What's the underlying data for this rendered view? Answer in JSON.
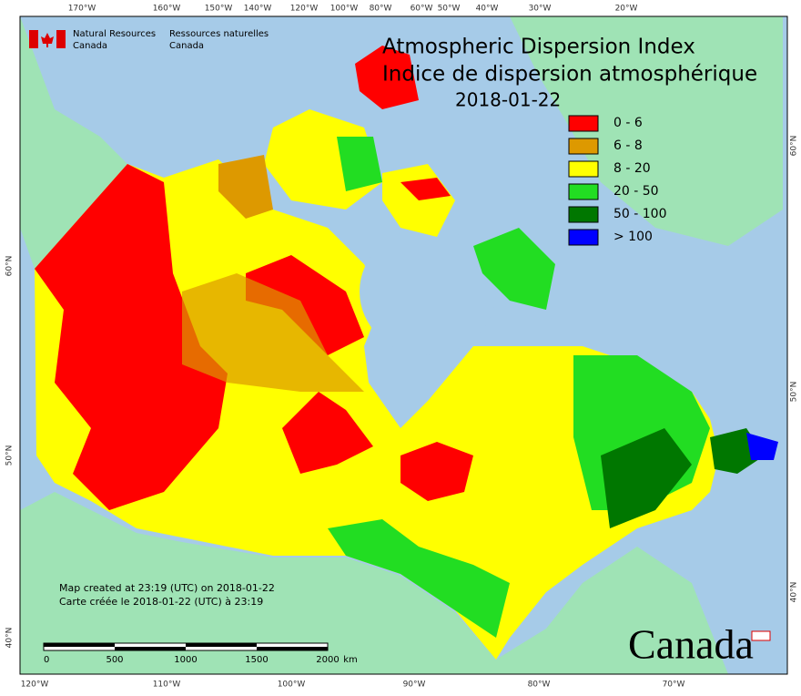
{
  "header": {
    "agency_en": [
      "Natural Resources",
      "Canada"
    ],
    "agency_fr": [
      "Ressources naturelles",
      "Canada"
    ],
    "title": "Atmospheric Dispersion Index",
    "title_fr": "Indice de dispersion atmosphérique",
    "date": "2018-01-22"
  },
  "legend": [
    {
      "label": "0 - 6",
      "color": "#ff0000"
    },
    {
      "label": "6 - 8",
      "color": "#dd9900"
    },
    {
      "label": "8 - 20",
      "color": "#ffff00"
    },
    {
      "label": "20 - 50",
      "color": "#22dd22"
    },
    {
      "label": "50 - 100",
      "color": "#007700"
    },
    {
      "label": "> 100",
      "color": "#0000ff"
    }
  ],
  "graticule": {
    "top": [
      "170°W",
      "160°W",
      "150°W",
      "140°W",
      "120°W",
      "100°W",
      "80°W",
      "60°W",
      "50°W",
      "40°W",
      "30°W",
      "20°W"
    ],
    "bottom": [
      "120°W",
      "110°W",
      "100°W",
      "90°W",
      "80°W",
      "70°W"
    ],
    "left": [
      "60°N",
      "50°N",
      "40°N"
    ],
    "right": [
      "60°N",
      "50°N",
      "40°N"
    ]
  },
  "footer": {
    "created_en": "Map created at 23:19 (UTC) on 2018-01-22",
    "created_fr": "Carte créée le 2018-01-22 (UTC) à 23:19",
    "scale": [
      "0",
      "500",
      "1000",
      "1500",
      "2000",
      "km"
    ],
    "wordmark": "Canada"
  }
}
